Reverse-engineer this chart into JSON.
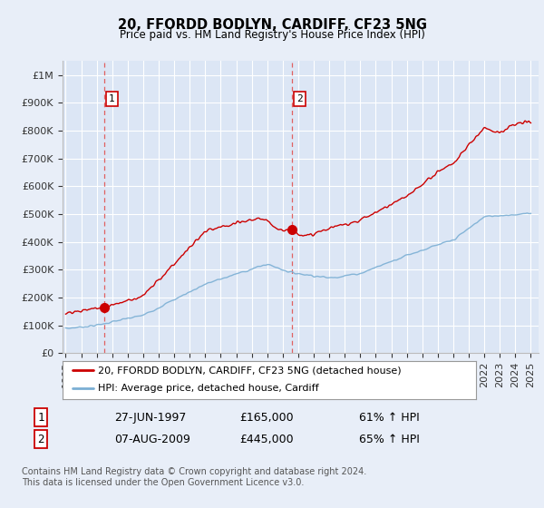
{
  "title": "20, FFORDD BODLYN, CARDIFF, CF23 5NG",
  "subtitle": "Price paid vs. HM Land Registry's House Price Index (HPI)",
  "background_color": "#e8eef8",
  "plot_bg_color": "#dce6f5",
  "xlim": [
    1994.8,
    2025.5
  ],
  "ylim": [
    0,
    1050000
  ],
  "yticks": [
    0,
    100000,
    200000,
    300000,
    400000,
    500000,
    600000,
    700000,
    800000,
    900000,
    1000000
  ],
  "ytick_labels": [
    "£0",
    "£100K",
    "£200K",
    "£300K",
    "£400K",
    "£500K",
    "£600K",
    "£700K",
    "£800K",
    "£900K",
    "£1M"
  ],
  "xticks": [
    1995,
    1996,
    1997,
    1998,
    1999,
    2000,
    2001,
    2002,
    2003,
    2004,
    2005,
    2006,
    2007,
    2008,
    2009,
    2010,
    2011,
    2012,
    2013,
    2014,
    2015,
    2016,
    2017,
    2018,
    2019,
    2020,
    2021,
    2022,
    2023,
    2024,
    2025
  ],
  "red_color": "#cc0000",
  "blue_color": "#7bafd4",
  "dashed_color": "#e06060",
  "transaction1": {
    "year": 1997.49,
    "price": 165000,
    "label": "1",
    "date": "27-JUN-1997",
    "pct": "61% ↑ HPI"
  },
  "transaction2": {
    "year": 2009.6,
    "price": 445000,
    "label": "2",
    "date": "07-AUG-2009",
    "pct": "65% ↑ HPI"
  },
  "legend_line1": "20, FFORDD BODLYN, CARDIFF, CF23 5NG (detached house)",
  "legend_line2": "HPI: Average price, detached house, Cardiff",
  "footer1": "Contains HM Land Registry data © Crown copyright and database right 2024.",
  "footer2": "This data is licensed under the Open Government Licence v3.0."
}
